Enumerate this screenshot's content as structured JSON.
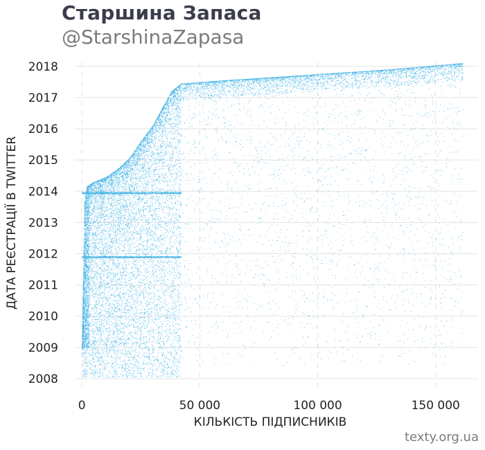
{
  "header": {
    "title": "Старшина Запаса",
    "subtitle": "@StarshinaZapasa"
  },
  "footer": {
    "credit": "texty.org.ua"
  },
  "chart_data": {
    "type": "scatter",
    "title": "Старшина Запаса",
    "subtitle": "@StarshinaZapasa",
    "xlabel": "КІЛЬКІСТЬ ПІДПИСНИКІВ",
    "ylabel": "ДАТА РЕЄСТРАЦІЇ В TWITTER",
    "xlim": [
      -3000,
      168000
    ],
    "ylim": [
      2007.6,
      2018.35
    ],
    "x_ticks": [
      {
        "value": 0,
        "label": "0"
      },
      {
        "value": 50000,
        "label": "50 000"
      },
      {
        "value": 100000,
        "label": "100 000"
      },
      {
        "value": 150000,
        "label": "150 000"
      }
    ],
    "y_ticks": [
      {
        "value": 2008,
        "label": "2008"
      },
      {
        "value": 2009,
        "label": "2009"
      },
      {
        "value": 2010,
        "label": "2010"
      },
      {
        "value": 2011,
        "label": "2011"
      },
      {
        "value": 2012,
        "label": "2012"
      },
      {
        "value": 2013,
        "label": "2013"
      },
      {
        "value": 2014,
        "label": "2014"
      },
      {
        "value": 2015,
        "label": "2015"
      },
      {
        "value": 2016,
        "label": "2016"
      },
      {
        "value": 2017,
        "label": "2017"
      },
      {
        "value": 2018,
        "label": "2018"
      }
    ],
    "grid": true,
    "point_color": "#1aa3e0",
    "upper_envelope": [
      [
        0,
        2008.9
      ],
      [
        1000,
        2013.6
      ],
      [
        2000,
        2014.15
      ],
      [
        5000,
        2014.3
      ],
      [
        10000,
        2014.45
      ],
      [
        15000,
        2014.7
      ],
      [
        20000,
        2015.05
      ],
      [
        25000,
        2015.6
      ],
      [
        30000,
        2016.1
      ],
      [
        35000,
        2016.8
      ],
      [
        38000,
        2017.2
      ],
      [
        42000,
        2017.45
      ],
      [
        60000,
        2017.55
      ],
      [
        100000,
        2017.75
      ],
      [
        130000,
        2017.9
      ],
      [
        161000,
        2018.1
      ]
    ],
    "dense_band": {
      "x_max": 42000,
      "y_min": 2009.0
    },
    "horizontal_bands": [
      {
        "y": 2011.9,
        "x_max": 42000
      },
      {
        "y": 2013.95,
        "x_max": 42000
      }
    ],
    "max_followers": 161500
  }
}
